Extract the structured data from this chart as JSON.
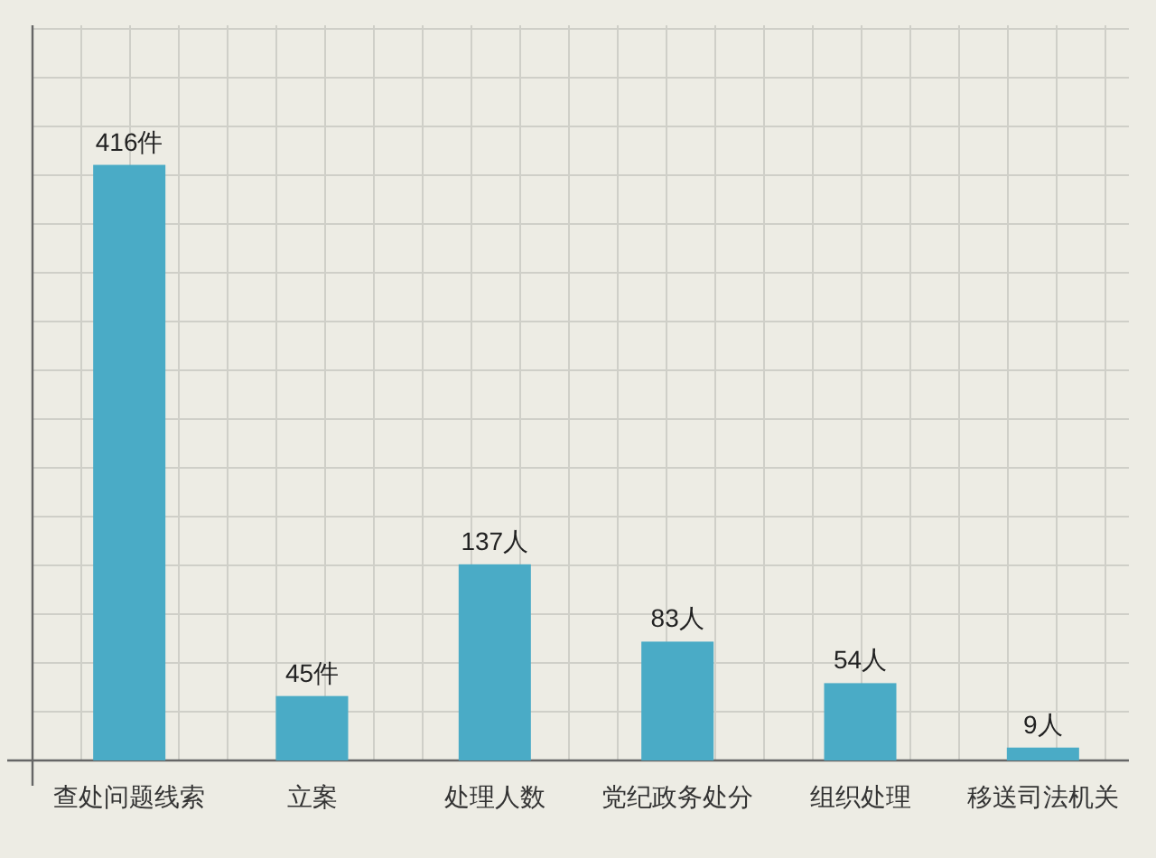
{
  "chart_data": {
    "type": "bar",
    "categories": [
      "查处问题线索",
      "立案",
      "处理人数",
      "党纪政务处分",
      "组织处理",
      "移送司法机关"
    ],
    "values": [
      416,
      45,
      137,
      83,
      54,
      9
    ],
    "value_labels": [
      "416件",
      "45件",
      "137人",
      "83人",
      "54人",
      "9人"
    ],
    "color": "#4aabc6",
    "grid": true
  }
}
